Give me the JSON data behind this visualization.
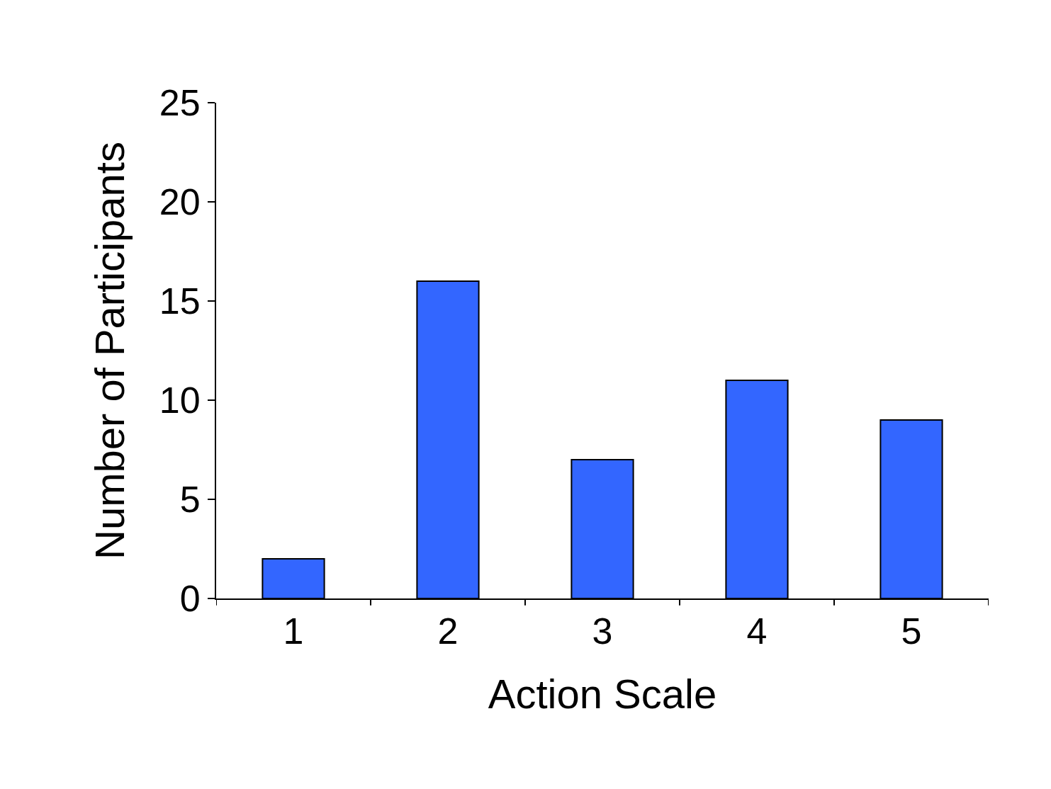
{
  "chart_data": {
    "type": "bar",
    "xlabel": "Action Scale",
    "ylabel": "Number of Participants",
    "categories": [
      "1",
      "2",
      "3",
      "4",
      "5"
    ],
    "values": [
      2,
      16,
      7,
      11,
      9
    ],
    "color": "#3366ff",
    "ylim": [
      0,
      25
    ],
    "yticks": [
      0,
      5,
      10,
      15,
      20,
      25
    ]
  }
}
